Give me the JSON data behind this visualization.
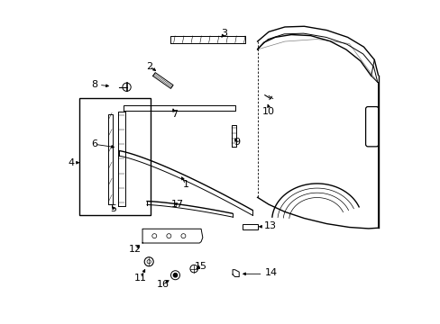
{
  "bg_color": "#ffffff",
  "line_color": "#000000",
  "figsize": [
    4.89,
    3.6
  ],
  "dpi": 100,
  "font_size": 8
}
